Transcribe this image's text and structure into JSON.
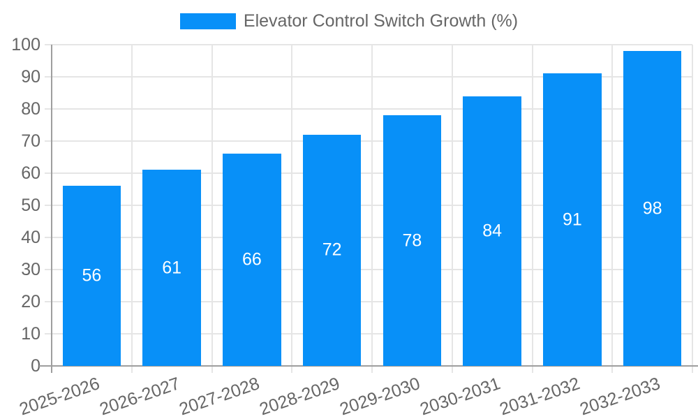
{
  "chart_data": {
    "type": "bar",
    "title": "",
    "legend": {
      "position": "top",
      "label": "Elevator Control Switch Growth (%)"
    },
    "categories": [
      "2025-2026",
      "2026-2027",
      "2027-2028",
      "2028-2029",
      "2029-2030",
      "2030-2031",
      "2031-2032",
      "2032-2033"
    ],
    "values": [
      56,
      61,
      66,
      72,
      78,
      84,
      91,
      98
    ],
    "xlabel": "",
    "ylabel": "",
    "ylim": [
      0,
      100
    ],
    "ytick_step": 10,
    "ytick_labels": [
      "0",
      "10",
      "20",
      "30",
      "40",
      "50",
      "60",
      "70",
      "80",
      "90",
      "100"
    ],
    "grid": true,
    "bar_value_labels": [
      "56",
      "61",
      "66",
      "72",
      "78",
      "84",
      "91",
      "98"
    ],
    "colors": {
      "bar": "#0890f8",
      "grid": "#e5e5e5",
      "axis": "#9e9e9e",
      "tick_label": "#666666",
      "legend_text": "#666666",
      "value_label": "#ffffff",
      "background": "#ffffff"
    }
  }
}
